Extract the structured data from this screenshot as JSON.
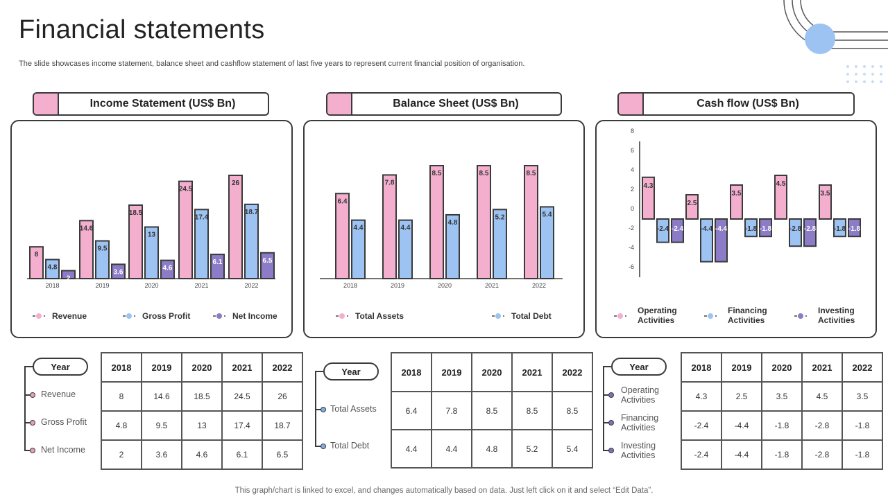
{
  "page": {
    "title": "Financial statements",
    "subtitle": "The slide showcases income statement, balance sheet and cashflow statement of last five years to  represent current financial position of organisation.",
    "footer": "This graph/chart is linked to excel,  and changes automatically based on data. Just left click on it and select “Edit Data”."
  },
  "colors": {
    "pink": "#f4afcf",
    "blue": "#9dc3f3",
    "purple": "#8c7bc6",
    "border": "#3a3a3a"
  },
  "headers": {
    "income": "Income Statement (US$ Bn)",
    "balance": "Balance Sheet (US$ Bn)",
    "cashflow": "Cash flow (US$ Bn)"
  },
  "chart_data": [
    {
      "type": "bar",
      "categories": [
        "2018",
        "2019",
        "2020",
        "2021",
        "2022"
      ],
      "series": [
        {
          "name": "Revenue",
          "values": [
            8,
            14.6,
            18.5,
            24.5,
            26
          ],
          "color": "#f4afcf"
        },
        {
          "name": "Gross Profit",
          "values": [
            4.8,
            9.5,
            13,
            17.4,
            18.7
          ],
          "color": "#9dc3f3"
        },
        {
          "name": "Net Income",
          "values": [
            2,
            3.6,
            4.6,
            6.1,
            6.5
          ],
          "color": "#8c7bc6"
        }
      ],
      "ylim": [
        0,
        26
      ],
      "legend": "bottom"
    },
    {
      "type": "bar",
      "categories": [
        "2018",
        "2019",
        "2020",
        "2021",
        "2022"
      ],
      "series": [
        {
          "name": "Total Assets",
          "values": [
            6.4,
            7.8,
            8.5,
            8.5,
            8.5
          ],
          "color": "#f4afcf"
        },
        {
          "name": "Total Debt",
          "values": [
            4.4,
            4.4,
            4.8,
            5.2,
            5.4
          ],
          "color": "#9dc3f3"
        }
      ],
      "ylim": [
        0,
        8.5
      ],
      "legend": "bottom"
    },
    {
      "type": "bar",
      "categories": [
        "2018",
        "2019",
        "2020",
        "2021",
        "2022"
      ],
      "series": [
        {
          "name": "Operating Activities",
          "values": [
            4.3,
            2.5,
            3.5,
            4.5,
            3.5
          ],
          "color": "#f4afcf"
        },
        {
          "name": "Financing Activities",
          "values": [
            -2.4,
            -4.4,
            -1.8,
            -2.8,
            -1.8
          ],
          "color": "#9dc3f3"
        },
        {
          "name": "Investing Activities",
          "values": [
            -2.4,
            -4.4,
            -1.8,
            -2.8,
            -1.8
          ],
          "color": "#8c7bc6"
        }
      ],
      "ylim": [
        -6,
        8
      ],
      "yticks": [
        "8",
        "6",
        "4",
        "2",
        "0",
        "-2",
        "-4",
        "-6"
      ],
      "legend": "bottom"
    }
  ],
  "tables": [
    {
      "year_label": "Year",
      "years": [
        "2018",
        "2019",
        "2020",
        "2021",
        "2022"
      ],
      "rows": [
        {
          "label": "Revenue",
          "values": [
            "8",
            "14.6",
            "18.5",
            "24.5",
            "26"
          ]
        },
        {
          "label": "Gross Profit",
          "values": [
            "4.8",
            "9.5",
            "13",
            "17.4",
            "18.7"
          ]
        },
        {
          "label": "Net Income",
          "values": [
            "2",
            "3.6",
            "4.6",
            "6.1",
            "6.5"
          ]
        }
      ]
    },
    {
      "year_label": "Year",
      "years": [
        "2018",
        "2019",
        "2020",
        "2021",
        "2022"
      ],
      "rows": [
        {
          "label": "Total Assets",
          "values": [
            "6.4",
            "7.8",
            "8.5",
            "8.5",
            "8.5"
          ]
        },
        {
          "label": "Total Debt",
          "values": [
            "4.4",
            "4.4",
            "4.8",
            "5.2",
            "5.4"
          ]
        }
      ]
    },
    {
      "year_label": "Year",
      "years": [
        "2018",
        "2019",
        "2020",
        "2021",
        "2022"
      ],
      "rows": [
        {
          "label": "Operating Activities",
          "values": [
            "4.3",
            "2.5",
            "3.5",
            "4.5",
            "3.5"
          ]
        },
        {
          "label": "Financing Activities",
          "values": [
            "-2.4",
            "-4.4",
            "-1.8",
            "-2.8",
            "-1.8"
          ]
        },
        {
          "label": "Investing Activities",
          "values": [
            "-2.4",
            "-4.4",
            "-1.8",
            "-2.8",
            "-1.8"
          ]
        }
      ]
    }
  ]
}
